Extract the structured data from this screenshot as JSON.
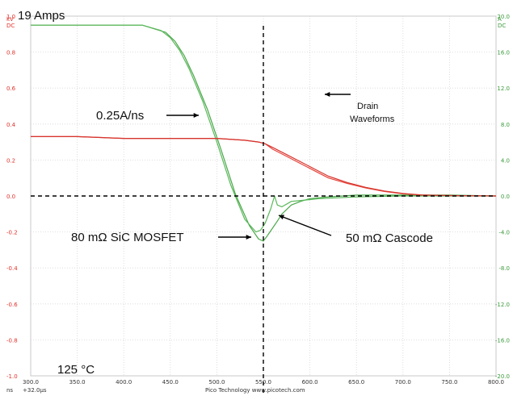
{
  "chart_data": {
    "type": "line",
    "title": "19 Amps",
    "temperature_label": "125 °C",
    "grid": true,
    "footer": "Pico Technology  www.picotech.com",
    "x_axis": {
      "unit": "ns",
      "offset": "+32.0µs",
      "range": [
        300,
        800
      ],
      "ticks": [
        "300.0",
        "350.0",
        "400.0",
        "450.0",
        "500.0",
        "550.0",
        "600.0",
        "650.0",
        "700.0",
        "750.0",
        "800.0"
      ]
    },
    "left_axis": {
      "unit_top": "kV",
      "coupling": "DC",
      "range": [
        -1.0,
        1.0
      ],
      "ticks": [
        "1.0",
        "0.8",
        "0.6",
        "0.4",
        "0.2",
        "0.0",
        "-0.2",
        "-0.4",
        "-0.6",
        "-0.8",
        "-1.0"
      ],
      "color": "#e0322b"
    },
    "right_axis": {
      "unit_top": "A",
      "coupling": "DC",
      "range": [
        -20.0,
        20.0
      ],
      "ticks": [
        "20.0",
        "16.0",
        "12.0",
        "8.0",
        "4.0",
        "0.0",
        "-4.0",
        "-8.0",
        "-12.0",
        "-16.0",
        "-20.0"
      ],
      "color": "#3c9a3c"
    },
    "series": [
      {
        "color": "#4aa84a",
        "x": [
          300,
          420,
          445,
          455,
          465,
          475,
          490,
          505,
          520,
          535,
          545,
          550,
          553,
          557,
          565,
          570,
          580,
          590,
          600,
          620,
          650,
          700,
          750,
          800
        ],
        "y": [
          19.0,
          19.0,
          18.2,
          17.2,
          15.6,
          13.4,
          9.6,
          5.0,
          0.2,
          -3.3,
          -4.8,
          -5.0,
          -4.6,
          -4.0,
          -2.8,
          -2.0,
          -1.0,
          -0.6,
          -0.3,
          -0.1,
          0.1,
          0.1,
          0.1,
          0.0
        ]
      },
      {
        "color": "#5bb85b",
        "x": [
          300,
          420,
          440,
          450,
          460,
          470,
          485,
          500,
          515,
          530,
          542,
          547,
          552,
          558,
          562,
          565,
          570,
          580,
          590,
          610,
          650,
          700,
          800
        ],
        "y": [
          19.0,
          19.0,
          18.4,
          17.6,
          16.2,
          14.2,
          10.5,
          6.0,
          1.2,
          -2.6,
          -4.0,
          -3.8,
          -3.0,
          -1.4,
          0.0,
          -1.0,
          -1.2,
          -0.6,
          -0.5,
          -0.3,
          -0.1,
          0.0,
          0.0
        ]
      },
      {
        "color": "#e8443c",
        "x": [
          300,
          350,
          400,
          450,
          500,
          530,
          545,
          552,
          560,
          575,
          590,
          605,
          620,
          640,
          660,
          680,
          700,
          720,
          740,
          760,
          780,
          800
        ],
        "y": [
          0.33,
          0.33,
          0.32,
          0.32,
          0.32,
          0.31,
          0.3,
          0.29,
          0.26,
          0.22,
          0.18,
          0.14,
          0.1,
          0.07,
          0.045,
          0.025,
          0.012,
          0.005,
          0.003,
          0.002,
          0.001,
          0.0
        ]
      },
      {
        "color": "#d6342c",
        "x": [
          300,
          350,
          400,
          450,
          500,
          530,
          545,
          552,
          560,
          575,
          590,
          605,
          620,
          640,
          660,
          680,
          700,
          720,
          740,
          760,
          780,
          800
        ],
        "y": [
          0.33,
          0.33,
          0.32,
          0.32,
          0.32,
          0.31,
          0.3,
          0.29,
          0.27,
          0.23,
          0.19,
          0.15,
          0.11,
          0.075,
          0.048,
          0.028,
          0.014,
          0.006,
          0.003,
          0.002,
          0.001,
          0.0
        ]
      }
    ],
    "annotations": [
      {
        "key": "slew",
        "text": "0.25A/ns"
      },
      {
        "key": "drain",
        "text": "Drain"
      },
      {
        "key": "drain2",
        "text": "Waveforms"
      },
      {
        "key": "sic",
        "text": "80 mΩ SiC MOSFET"
      },
      {
        "key": "cascode",
        "text": "50 mΩ Cascode"
      }
    ]
  }
}
